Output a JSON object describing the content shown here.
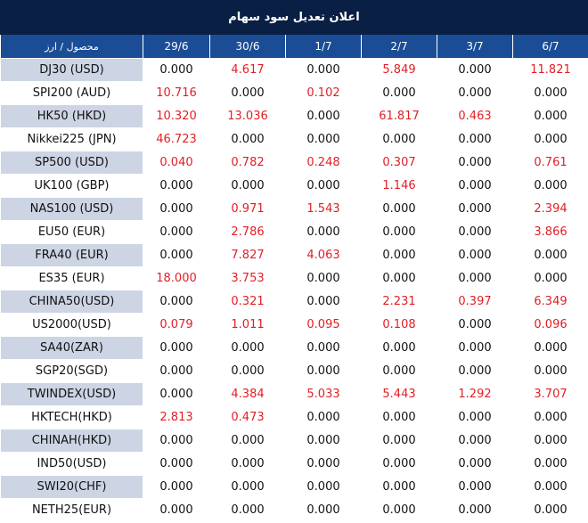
{
  "title": "اعلان تعدیل سود سهام",
  "headers": [
    "محصول / ارز",
    "29/6",
    "30/6",
    "1/7",
    "2/7",
    "3/7",
    "6/7"
  ],
  "colors": {
    "title_bg": "#0a1f44",
    "header_bg": "#1b4d96",
    "stripe": "#cdd5e4",
    "positive": "#e21e25",
    "zero": "#111111"
  },
  "rows": [
    {
      "symbol": "DJ30 (USD)",
      "values": [
        "0.000",
        "4.617",
        "0.000",
        "5.849",
        "0.000",
        "11.821"
      ]
    },
    {
      "symbol": "SPI200 (AUD)",
      "values": [
        "10.716",
        "0.000",
        "0.102",
        "0.000",
        "0.000",
        "0.000"
      ]
    },
    {
      "symbol": "HK50 (HKD)",
      "values": [
        "10.320",
        "13.036",
        "0.000",
        "61.817",
        "0.463",
        "0.000"
      ]
    },
    {
      "symbol": "Nikkei225 (JPN)",
      "values": [
        "46.723",
        "0.000",
        "0.000",
        "0.000",
        "0.000",
        "0.000"
      ]
    },
    {
      "symbol": "SP500 (USD)",
      "values": [
        "0.040",
        "0.782",
        "0.248",
        "0.307",
        "0.000",
        "0.761"
      ]
    },
    {
      "symbol": "UK100 (GBP)",
      "values": [
        "0.000",
        "0.000",
        "0.000",
        "1.146",
        "0.000",
        "0.000"
      ]
    },
    {
      "symbol": "NAS100 (USD)",
      "values": [
        "0.000",
        "0.971",
        "1.543",
        "0.000",
        "0.000",
        "2.394"
      ]
    },
    {
      "symbol": "EU50 (EUR)",
      "values": [
        "0.000",
        "2.786",
        "0.000",
        "0.000",
        "0.000",
        "3.866"
      ]
    },
    {
      "symbol": "FRA40 (EUR)",
      "values": [
        "0.000",
        "7.827",
        "4.063",
        "0.000",
        "0.000",
        "0.000"
      ]
    },
    {
      "symbol": "ES35 (EUR)",
      "values": [
        "18.000",
        "3.753",
        "0.000",
        "0.000",
        "0.000",
        "0.000"
      ]
    },
    {
      "symbol": "CHINA50(USD)",
      "values": [
        "0.000",
        "0.321",
        "0.000",
        "2.231",
        "0.397",
        "6.349"
      ]
    },
    {
      "symbol": "US2000(USD)",
      "values": [
        "0.079",
        "1.011",
        "0.095",
        "0.108",
        "0.000",
        "0.096"
      ]
    },
    {
      "symbol": "SA40(ZAR)",
      "values": [
        "0.000",
        "0.000",
        "0.000",
        "0.000",
        "0.000",
        "0.000"
      ]
    },
    {
      "symbol": "SGP20(SGD)",
      "values": [
        "0.000",
        "0.000",
        "0.000",
        "0.000",
        "0.000",
        "0.000"
      ]
    },
    {
      "symbol": "TWINDEX(USD)",
      "values": [
        "0.000",
        "4.384",
        "5.033",
        "5.443",
        "1.292",
        "3.707"
      ]
    },
    {
      "symbol": "HKTECH(HKD)",
      "values": [
        "2.813",
        "0.473",
        "0.000",
        "0.000",
        "0.000",
        "0.000"
      ]
    },
    {
      "symbol": "CHINAH(HKD)",
      "values": [
        "0.000",
        "0.000",
        "0.000",
        "0.000",
        "0.000",
        "0.000"
      ]
    },
    {
      "symbol": "IND50(USD)",
      "values": [
        "0.000",
        "0.000",
        "0.000",
        "0.000",
        "0.000",
        "0.000"
      ]
    },
    {
      "symbol": "SWI20(CHF)",
      "values": [
        "0.000",
        "0.000",
        "0.000",
        "0.000",
        "0.000",
        "0.000"
      ]
    },
    {
      "symbol": "NETH25(EUR)",
      "values": [
        "0.000",
        "0.000",
        "0.000",
        "0.000",
        "0.000",
        "0.000"
      ]
    }
  ]
}
